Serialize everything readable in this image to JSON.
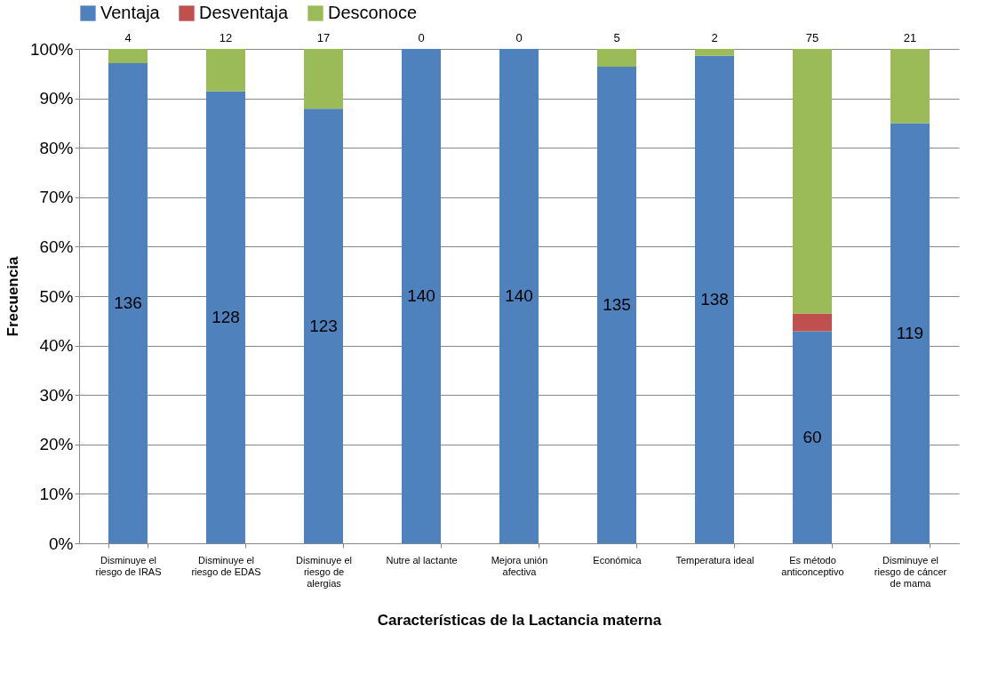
{
  "chart_data": {
    "type": "bar",
    "stacked": true,
    "xlabel": "Características de la Lactancia materna",
    "ylabel": "Frecuencia",
    "categories": [
      "Disminuye el riesgo de IRAS",
      "Disminuye el riesgo de EDAS",
      "Disminuye el riesgo de alergias",
      "Nutre al lactante",
      "Mejora unión afectiva",
      "Económica",
      "Temperatura ideal",
      "Es método anticonceptivo",
      "Disminuye el riesgo de cáncer de mama"
    ],
    "series": [
      {
        "name": "Ventaja",
        "color": "#4f81bd",
        "values": [
          97.1,
          91.4,
          87.9,
          100,
          100,
          96.4,
          98.6,
          42.9,
          85
        ]
      },
      {
        "name": "Desventaja",
        "color": "#c0504d",
        "values": [
          0,
          0,
          0,
          0,
          0,
          0,
          0,
          3.6,
          0
        ]
      },
      {
        "name": "Desconoce",
        "color": "#9bbb59",
        "values": [
          2.9,
          8.6,
          12.1,
          0,
          0,
          3.6,
          1.4,
          53.5,
          15
        ]
      }
    ],
    "annotations": [
      "136",
      "128",
      "123",
      "140",
      "140",
      "135",
      "138",
      "60",
      "119",
      {
        "text": "4",
        "x": "Disminuye el riesgo de IRAS",
        "y": 100
      },
      {
        "text": "12",
        "x": "Disminuye el riesgo de EDAS",
        "y": 100
      },
      {
        "text": "17",
        "x": "Disminuye el riesgo de alergias",
        "y": 100
      },
      {
        "text": "0",
        "x": "Nutre al lactante",
        "y": 100
      },
      {
        "text": "0",
        "x": "Mejora unión afectiva",
        "y": 100
      },
      {
        "text": "5",
        "x": "Económica",
        "y": 100
      },
      {
        "text": "2",
        "x": "Temperatura ideal",
        "y": 100
      },
      {
        "text": "75",
        "x": "Es método anticonceptivo",
        "y": 100
      },
      {
        "text": "21",
        "x": "Disminuye el riesgo de cáncer de mama",
        "y": 100
      }
    ],
    "ylim": [
      0,
      100
    ],
    "yticks": [
      {
        "value": 0,
        "label": "0%"
      },
      {
        "value": 10,
        "label": "10%"
      },
      {
        "value": 20,
        "label": "20%"
      },
      {
        "value": 30,
        "label": "30%"
      },
      {
        "value": 40,
        "label": "40%"
      },
      {
        "value": 50,
        "label": "50%"
      },
      {
        "value": 60,
        "label": "60%"
      },
      {
        "value": 70,
        "label": "70%"
      },
      {
        "value": 80,
        "label": "80%"
      },
      {
        "value": 90,
        "label": "90%"
      },
      {
        "value": 100,
        "label": "100%"
      }
    ],
    "grid": "y",
    "legend": "top"
  }
}
